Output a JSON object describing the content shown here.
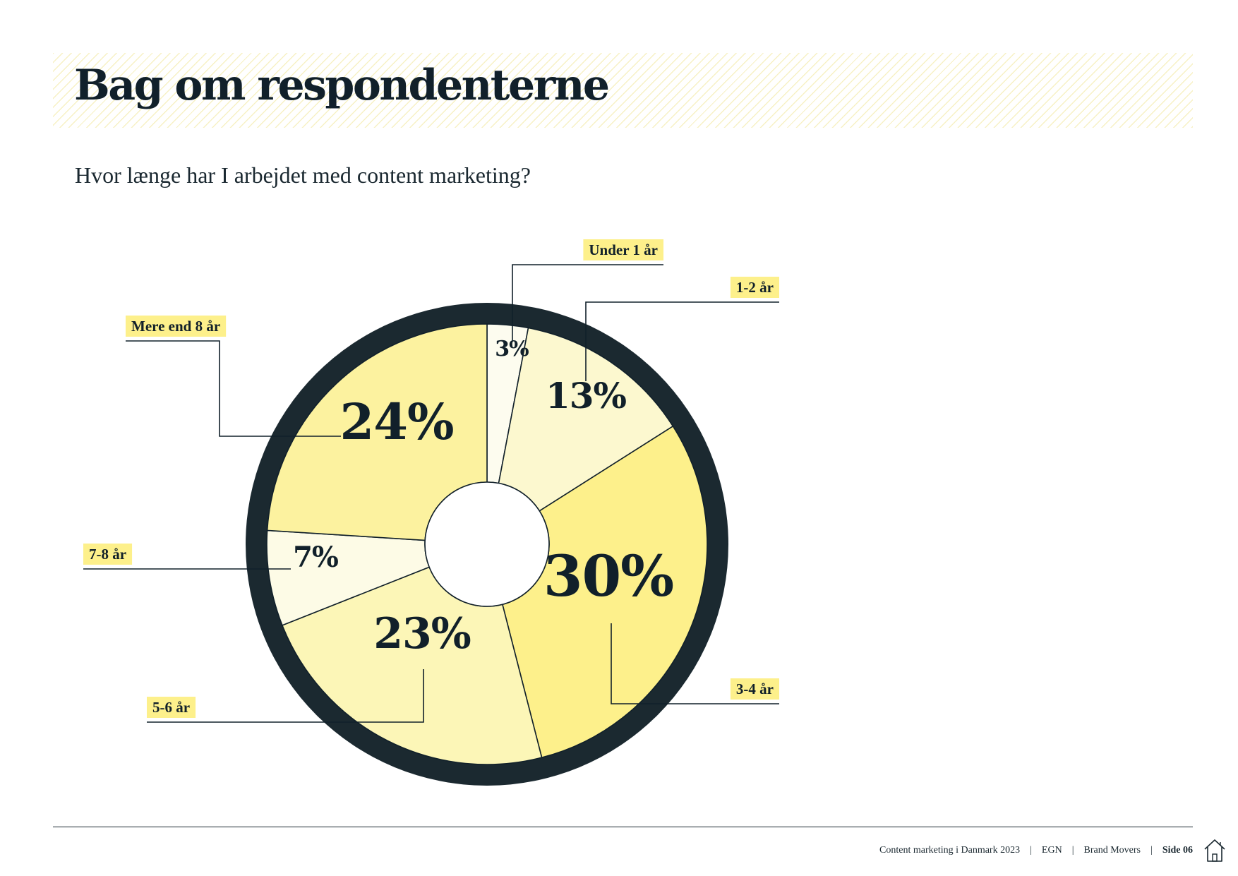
{
  "header": {
    "title": "Bag om respondenterne"
  },
  "question": "Hvor længe har I arbejdet med content marketing?",
  "chart_data": {
    "type": "pie",
    "variant": "donut",
    "title": "Hvor længe har I arbejdet med content marketing?",
    "unit": "%",
    "slices": [
      {
        "label": "Under 1 år",
        "value": 3,
        "display": "3%",
        "color": "#fdfcef"
      },
      {
        "label": "1-2 år",
        "value": 13,
        "display": "13%",
        "color": "#fcf8cf"
      },
      {
        "label": "3-4 år",
        "value": 30,
        "display": "30%",
        "color": "#fdf08b"
      },
      {
        "label": "5-6 år",
        "value": 23,
        "display": "23%",
        "color": "#fcf6b7"
      },
      {
        "label": "7-8 år",
        "value": 7,
        "display": "7%",
        "color": "#fdfbe6"
      },
      {
        "label": "Mere end 8 år",
        "value": 24,
        "display": "24%",
        "color": "#fcf29f"
      }
    ]
  },
  "colors": {
    "ring": "#1b2930",
    "label_highlight": "#fdf08b",
    "text": "#11202a"
  },
  "footer": {
    "publication": "Content marketing i Danmark 2023",
    "partner1": "EGN",
    "partner2": "Brand Movers",
    "page": "Side 06",
    "separator": "|",
    "home_icon": "home-icon"
  }
}
